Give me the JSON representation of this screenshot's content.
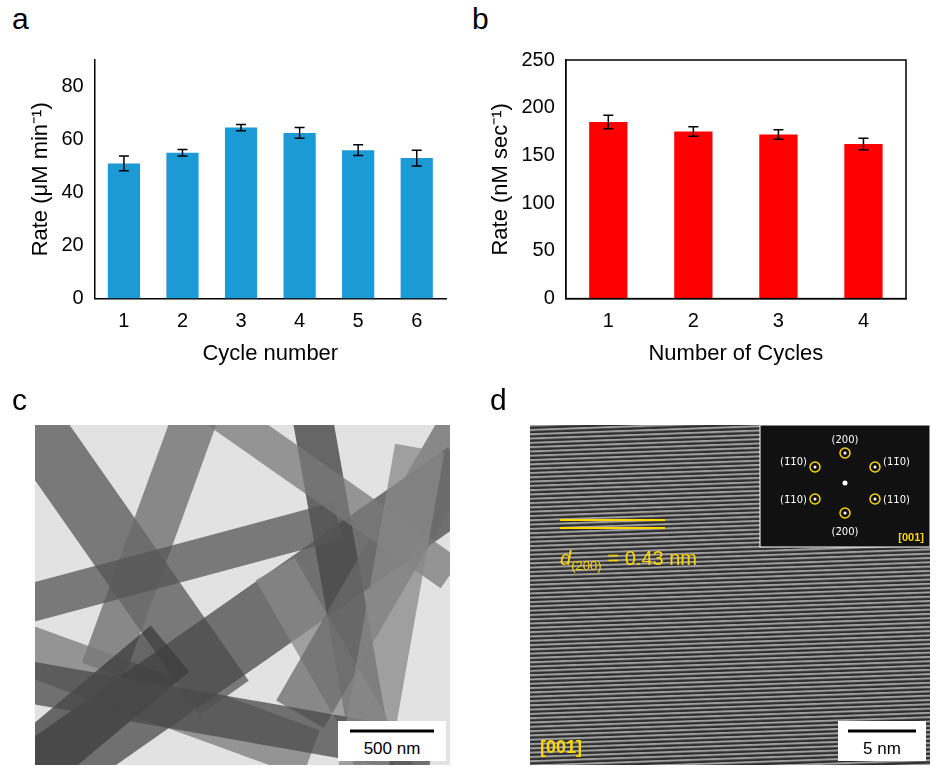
{
  "chart_data": [
    {
      "panel": "a",
      "type": "bar",
      "categories": [
        "1",
        "2",
        "3",
        "4",
        "5",
        "6"
      ],
      "values": [
        51,
        55,
        64.5,
        62.5,
        56,
        53
      ],
      "errors": [
        2.8,
        1.2,
        1.2,
        2,
        2,
        3
      ],
      "color": "#1b9ad6",
      "x_label": "Cycle number",
      "y_label": "Rate (μM min⁻¹)",
      "ylim": [
        0,
        90
      ],
      "yticks": [
        0,
        20,
        40,
        60,
        80
      ],
      "grid": false
    },
    {
      "panel": "b",
      "type": "bar",
      "categories": [
        "1",
        "2",
        "3",
        "4"
      ],
      "values": [
        185,
        175,
        172,
        162
      ],
      "errors": [
        7,
        5,
        5,
        6
      ],
      "color": "#ff0000",
      "x_label": "Number of Cycles",
      "y_label": "Rate (nM sec⁻¹)",
      "ylim": [
        0,
        250
      ],
      "yticks": [
        0,
        50,
        100,
        150,
        200,
        250
      ],
      "grid": false
    }
  ],
  "micrographs": [
    {
      "panel": "c",
      "scale_bar": "500 nm"
    },
    {
      "panel": "d",
      "scale_bar": "5 nm",
      "zone_axis": "[001]",
      "spacing": {
        "symbol": "d",
        "subscript": "(200)",
        "text": "= 0.43 nm"
      },
      "fft_spots": [
        "(1̄1̄0)",
        "(200)",
        "(11̄0)",
        "(1̄10)",
        "(110)",
        "(2̄00)"
      ]
    }
  ]
}
